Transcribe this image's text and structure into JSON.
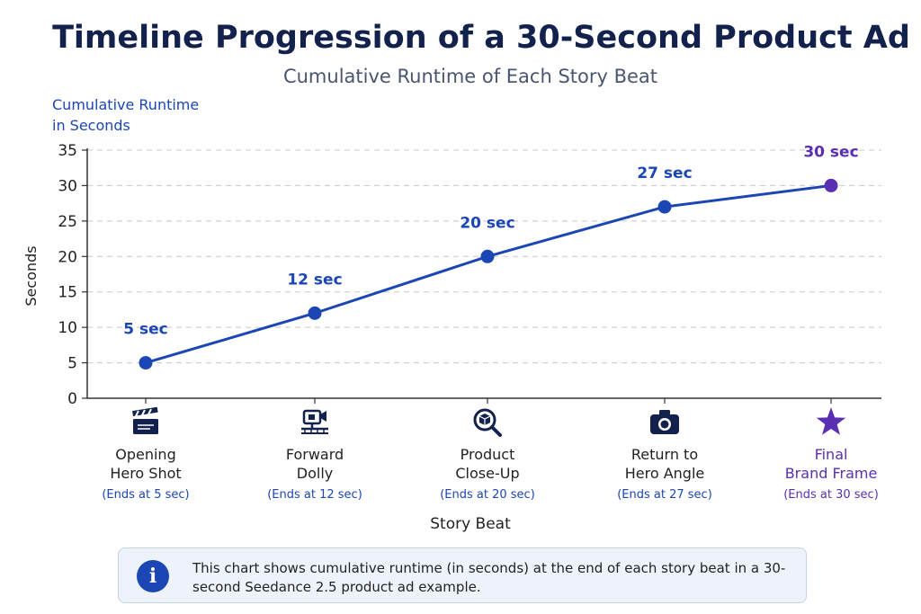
{
  "chart_data": {
    "type": "line",
    "title": "Timeline Progression of a 30-Second Product Ad",
    "subtitle": "Cumulative Runtime of Each Story Beat",
    "ylabel_top": [
      "Cumulative Runtime",
      "in Seconds"
    ],
    "ylabel": "Seconds",
    "xlabel": "Story Beat",
    "ylim": [
      0,
      35
    ],
    "yticks": [
      0,
      5,
      10,
      15,
      20,
      25,
      30,
      35
    ],
    "grid": true,
    "categories": [
      {
        "lines": [
          "Opening",
          "Hero Shot"
        ],
        "sub": "(Ends at 5 sec)",
        "icon": "clapperboard-icon"
      },
      {
        "lines": [
          "Forward",
          "Dolly"
        ],
        "sub": "(Ends at 12 sec)",
        "icon": "dolly-camera-icon"
      },
      {
        "lines": [
          "Product",
          "Close-Up"
        ],
        "sub": "(Ends at 20 sec)",
        "icon": "magnifier-box-icon"
      },
      {
        "lines": [
          "Return to",
          "Hero Angle"
        ],
        "sub": "(Ends at 27 sec)",
        "icon": "camera-icon"
      },
      {
        "lines": [
          "Final",
          "Brand Frame"
        ],
        "sub": "(Ends at 30 sec)",
        "icon": "star-icon"
      }
    ],
    "values": [
      5,
      12,
      20,
      27,
      30
    ],
    "data_labels": [
      "5 sec",
      "12 sec",
      "20 sec",
      "27 sec",
      "30 sec"
    ],
    "colors": {
      "line": "#1b46b3",
      "final": "#5a2fb3"
    }
  },
  "info": {
    "icon": "info-icon",
    "text": "This chart shows cumulative runtime (in seconds) at the end of each story beat in a 30-second Seedance 2.5 product ad example."
  }
}
